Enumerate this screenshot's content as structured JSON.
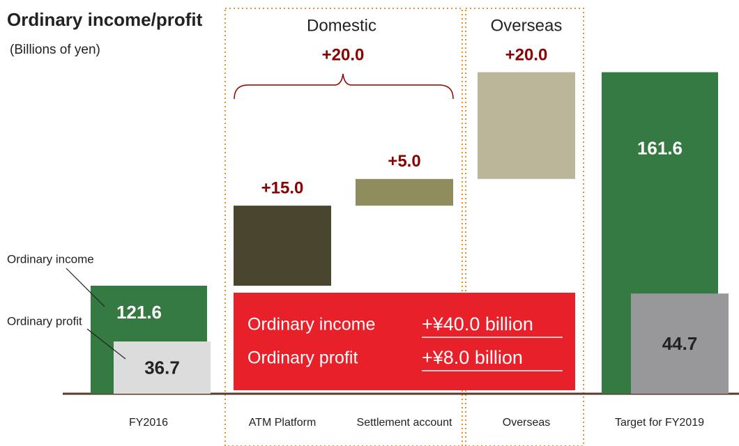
{
  "chart_data": {
    "type": "waterfall",
    "title": "Ordinary income/profit",
    "subtitle": "(Billions of yen)",
    "categories": [
      "FY2016",
      "ATM Platform",
      "Settlement account",
      "Overseas",
      "Target for FY2019"
    ],
    "series": [
      {
        "name": "Ordinary income",
        "colors": [
          "#357a42",
          null,
          null,
          null,
          "#357a42"
        ],
        "values": [
          121.6,
          null,
          null,
          null,
          161.6
        ]
      },
      {
        "name": "Ordinary profit",
        "colors": [
          "#dcdcdc",
          null,
          null,
          null,
          "#98989a"
        ],
        "values": [
          36.7,
          null,
          null,
          null,
          44.7
        ]
      }
    ],
    "increments": {
      "values": [
        null,
        15,
        5,
        20,
        null
      ],
      "value_labels": [
        null,
        "+15.0",
        "+5.0",
        "+20.0",
        null
      ],
      "colors": [
        null,
        "#4a452d",
        "#8f8c5e",
        "#bbb599",
        null
      ]
    },
    "groups": [
      {
        "name": "Domestic",
        "value": 20,
        "value_label": "+20.0"
      },
      {
        "name": "Overseas"
      }
    ],
    "summary": [
      {
        "label": "Ordinary income",
        "value_label": "+¥40.0 billion"
      },
      {
        "label": "Ordinary profit",
        "value_label": "+¥8.0 billion"
      }
    ]
  }
}
